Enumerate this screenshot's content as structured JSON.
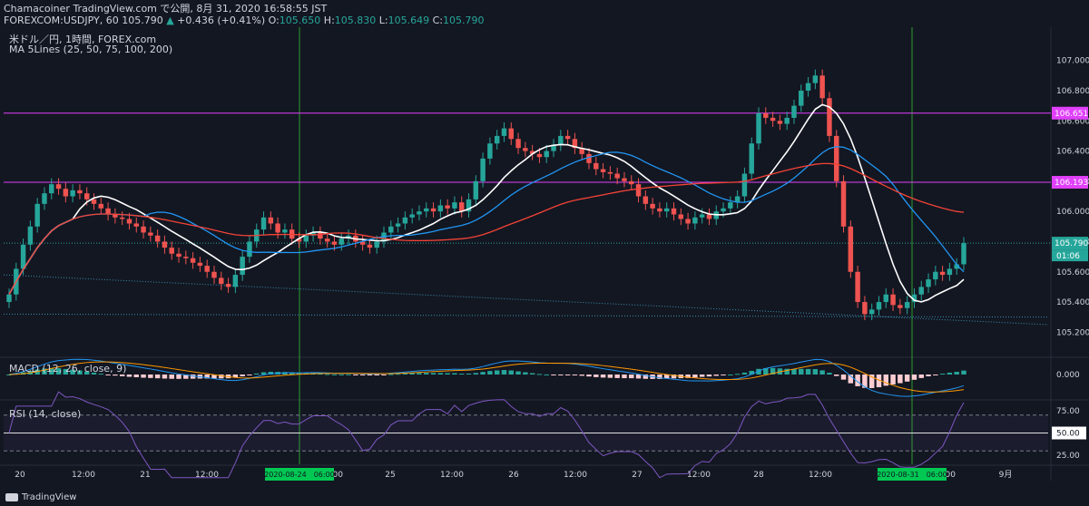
{
  "header": {
    "line1": "Chamacoiner TradingView.com で公開, 8月 31, 2020 16:58:55 JST",
    "symbol": "FOREXCOM:USDJPY, 60",
    "last": "105.790",
    "change_arrow": "▲",
    "change": "+0.436 (+0.41%)",
    "o_label": "O:",
    "o_value": "105.650",
    "h_label": "H:",
    "h_value": "105.830",
    "l_label": "L:",
    "l_value": "105.649",
    "c_label": "C:",
    "c_value": "105.790"
  },
  "main_pane": {
    "title": "米ドル／円, 1時間, FOREX.com",
    "ma_label": "MA 5Lines (25, 50, 75, 100, 200)",
    "price_ticks": [
      "107.000",
      "106.800",
      "106.600",
      "106.400",
      "106.200",
      "106.000",
      "105.800",
      "105.600",
      "105.400",
      "105.200"
    ],
    "hlines": [
      {
        "value": "106.651",
        "color": "#e040fb"
      },
      {
        "value": "106.193",
        "color": "#e040fb"
      }
    ],
    "last_price_label": "105.790",
    "countdown_label": "01:06"
  },
  "macd_pane": {
    "label": "MACD (12, 26, close, 9)",
    "tick": "0.000"
  },
  "rsi_pane": {
    "label": "RSI (14, close)",
    "ticks": [
      "75.00",
      "50.00",
      "25.00"
    ]
  },
  "time_axis": {
    "labels": [
      "20",
      "12:00",
      "21",
      "12:00",
      "24",
      "12:00",
      "25",
      "12:00",
      "26",
      "12:00",
      "27",
      "12:00",
      "28",
      "12:00",
      "29",
      "12:00",
      "9月"
    ],
    "highlight_labels": [
      "2020-08-24　06:00",
      "2020-08-31　06:00"
    ]
  },
  "colors": {
    "background": "#131722",
    "up": "#26a69a",
    "down": "#ef5350",
    "ma_white": "#ffffff",
    "ma_blue": "#2196f3",
    "ma_red": "#f44336",
    "level": "#e040fb",
    "vline": "#2e9d2e",
    "rsi": "#7e57c2"
  },
  "branding": {
    "logo_text": "TradingView"
  },
  "chart_data": {
    "type": "candlestick",
    "symbol": "FOREXCOM:USDJPY",
    "interval": "60",
    "y_range": [
      105.1,
      107.1
    ],
    "closes": [
      105.45,
      105.62,
      105.78,
      105.9,
      106.05,
      106.12,
      106.18,
      106.15,
      106.1,
      106.14,
      106.12,
      106.08,
      106.05,
      106.02,
      105.98,
      105.96,
      105.95,
      105.92,
      105.9,
      105.86,
      105.84,
      105.8,
      105.76,
      105.72,
      105.7,
      105.69,
      105.66,
      105.64,
      105.6,
      105.56,
      105.52,
      105.5,
      105.58,
      105.7,
      105.8,
      105.88,
      105.96,
      105.92,
      105.86,
      105.88,
      105.82,
      105.8,
      105.84,
      105.86,
      105.82,
      105.8,
      105.78,
      105.82,
      105.84,
      105.8,
      105.78,
      105.76,
      105.8,
      105.86,
      105.9,
      105.92,
      105.96,
      105.98,
      106.0,
      106.02,
      106.0,
      106.04,
      106.02,
      106.06,
      106.0,
      106.08,
      106.2,
      106.35,
      106.45,
      106.5,
      106.55,
      106.48,
      106.42,
      106.4,
      106.38,
      106.36,
      106.4,
      106.44,
      106.5,
      106.48,
      106.42,
      106.38,
      106.32,
      106.28,
      106.26,
      106.25,
      106.22,
      106.2,
      106.18,
      106.1,
      106.05,
      106.02,
      106.0,
      106.02,
      105.98,
      105.95,
      105.92,
      105.96,
      105.98,
      105.95,
      106.0,
      106.02,
      106.06,
      106.1,
      106.25,
      106.45,
      106.65,
      106.62,
      106.6,
      106.58,
      106.62,
      106.7,
      106.8,
      106.85,
      106.9,
      106.75,
      106.5,
      106.2,
      105.9,
      105.6,
      105.4,
      105.32,
      105.35,
      105.4,
      105.45,
      105.38,
      105.36,
      105.4,
      105.45,
      105.5,
      105.55,
      105.6,
      105.58,
      105.62,
      105.65,
      105.79
    ],
    "macd_range": [
      -0.3,
      0.2
    ],
    "rsi_range": [
      15,
      85
    ],
    "rsi_levels": [
      30,
      50,
      70
    ],
    "vertical_markers": [
      "2020-08-24 06:00",
      "2020-08-31 06:00"
    ]
  }
}
